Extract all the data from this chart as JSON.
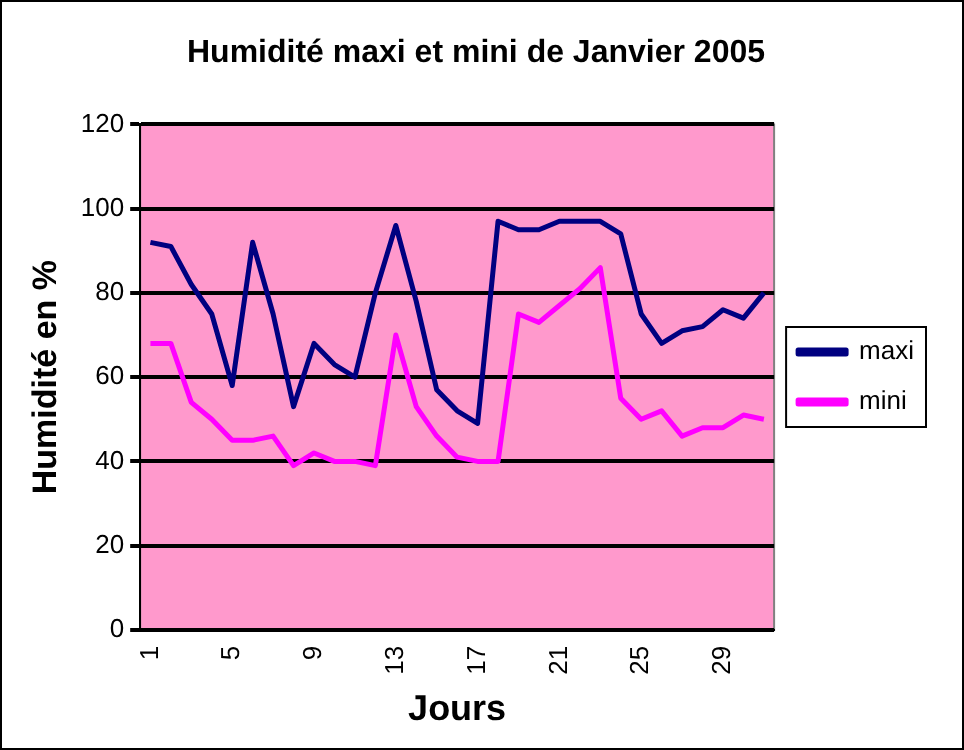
{
  "chart_data": {
    "type": "line",
    "title": "Humidité maxi et mini de Janvier 2005",
    "xlabel": "Jours",
    "ylabel": "Humidité en %",
    "categories": [
      "1",
      null,
      null,
      null,
      "5",
      null,
      null,
      null,
      "9",
      null,
      null,
      null,
      "13",
      null,
      null,
      null,
      "17",
      null,
      null,
      null,
      "21",
      null,
      null,
      null,
      "25",
      null,
      null,
      null,
      "29",
      null,
      null
    ],
    "series": [
      {
        "name": "maxi",
        "color": "#000080",
        "values": [
          92,
          91,
          82,
          75,
          58,
          92,
          75,
          53,
          68,
          63,
          60,
          80,
          96,
          78,
          57,
          52,
          49,
          97,
          95,
          95,
          97,
          97,
          97,
          94,
          75,
          68,
          71,
          72,
          76,
          74,
          80
        ]
      },
      {
        "name": "mini",
        "color": "#ff00ff",
        "values": [
          68,
          68,
          54,
          50,
          45,
          45,
          46,
          39,
          42,
          40,
          40,
          39,
          70,
          53,
          46,
          41,
          40,
          40,
          75,
          73,
          77,
          81,
          86,
          55,
          50,
          52,
          46,
          48,
          48,
          51,
          50
        ]
      }
    ],
    "ylim": [
      0,
      120
    ],
    "yticks": [
      0,
      20,
      40,
      60,
      80,
      100,
      120
    ],
    "grid": "y",
    "legend": "right",
    "marker": "none",
    "line_style": "solid"
  }
}
